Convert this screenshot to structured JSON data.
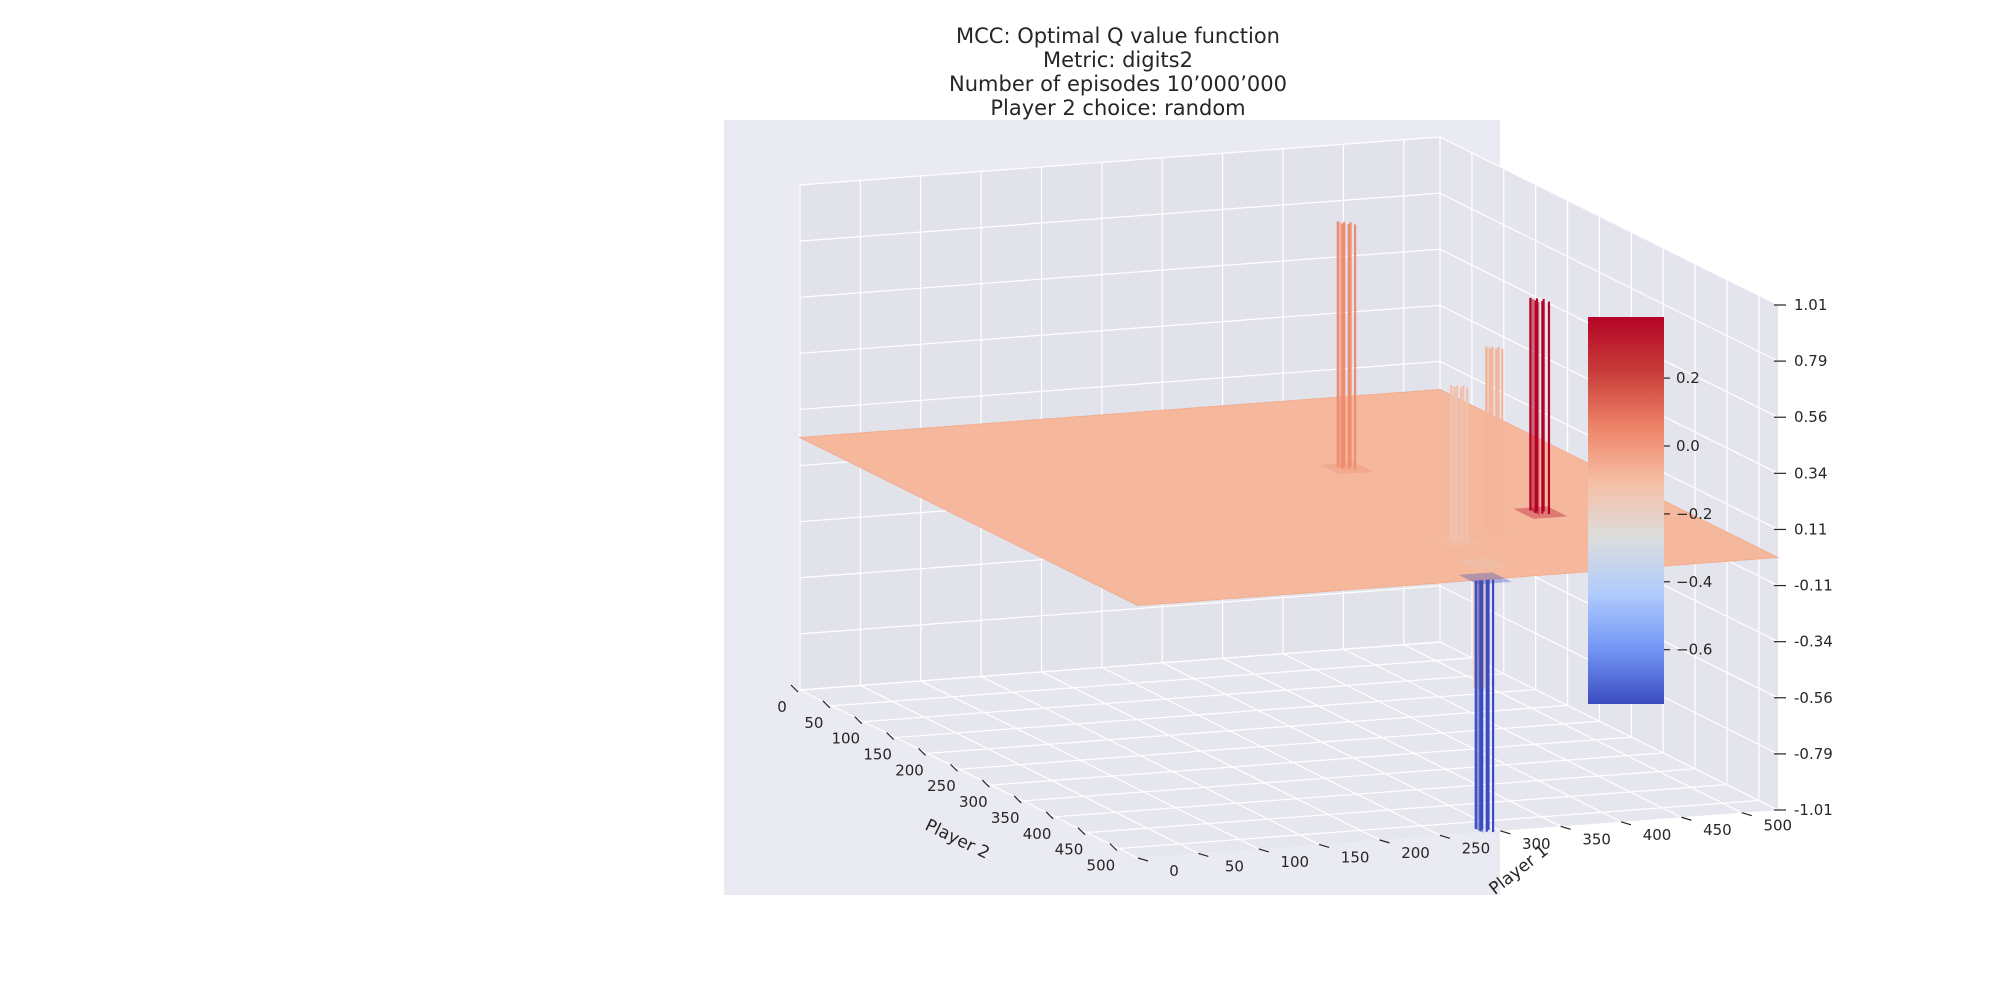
{
  "chart_data": {
    "type": "surface3d",
    "title_lines": [
      "MCC: Optimal Q value function",
      "Metric: digits2",
      "Number of episodes 10’000’000",
      "Player 2 choice: random"
    ],
    "xlabel": "Player 2",
    "ylabel": "Player 1",
    "zlabel": "",
    "x_ticks": [
      "0",
      "50",
      "100",
      "150",
      "200",
      "250",
      "300",
      "350",
      "400",
      "450",
      "500"
    ],
    "y_ticks": [
      "0",
      "50",
      "100",
      "150",
      "200",
      "250",
      "300",
      "350",
      "400",
      "450",
      "500"
    ],
    "z_ticks": [
      "-1.01",
      "-0.79",
      "-0.56",
      "-0.34",
      "-0.11",
      "0.11",
      "0.34",
      "0.56",
      "0.79",
      "1.01"
    ],
    "xlim": [
      0,
      530
    ],
    "ylim": [
      0,
      530
    ],
    "zlim": [
      -1.01,
      1.01
    ],
    "base_value": 0.0,
    "colormap": "coolwarm",
    "colorbar": {
      "ticks": [
        "0.2",
        "0.0",
        "−0.2",
        "−0.4",
        "−0.6"
      ],
      "tick_values": [
        0.2,
        0.0,
        -0.2,
        -0.4,
        -0.6
      ],
      "range": [
        -0.76,
        0.38
      ],
      "colors": [
        "#3b4cc0",
        "#7396f5",
        "#b0cbfc",
        "#dcdddd",
        "#f6bfa6",
        "#ee8468",
        "#c83d3a",
        "#b40426"
      ]
    },
    "plane_color": "#f5b89d",
    "pane_color": "#eaeaf2",
    "grid": true,
    "features": [
      {
        "x": 190,
        "y": 345,
        "dx": 12,
        "dy": 8,
        "z_top": 0.98,
        "value": 0.05,
        "color": "#ef8d6f"
      },
      {
        "x": 350,
        "y": 420,
        "dx": 14,
        "dy": 8,
        "z_top": 0.85,
        "value": 0.38,
        "color": "#b40426"
      },
      {
        "x": 385,
        "y": 365,
        "dx": 10,
        "dy": 8,
        "z_top": 0.72,
        "value": 0.02,
        "color": "#f3b49a"
      },
      {
        "x": 415,
        "y": 320,
        "dx": 10,
        "dy": 8,
        "z_top": 0.62,
        "value": -0.05,
        "color": "#f0c2ad"
      },
      {
        "x": 480,
        "y": 305,
        "dx": 10,
        "dy": 6,
        "z_bottom": -0.5,
        "value": -0.1,
        "color": "#e8c9b9"
      },
      {
        "x": 520,
        "y": 285,
        "dx": 12,
        "dy": 8,
        "z_bottom": -1.01,
        "value": -0.76,
        "color": "#3b4cc0"
      }
    ]
  }
}
